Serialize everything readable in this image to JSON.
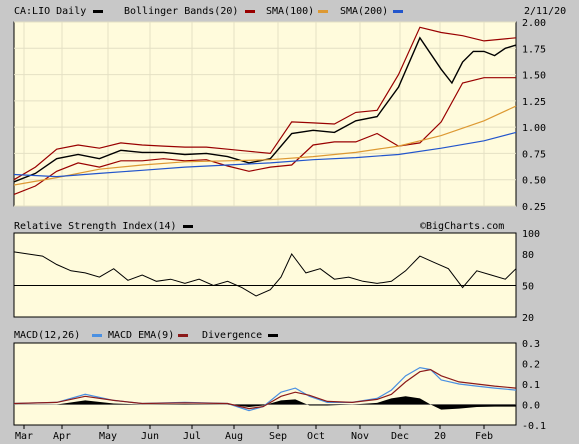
{
  "date": "2/11/20",
  "watermark": "©BigCharts.com",
  "colors": {
    "background": "#c8c8c8",
    "plot": "#fffbdc",
    "price": "#000000",
    "bollinger": "#990000",
    "sma100": "#dd9933",
    "sma200": "#2255cc",
    "rsi": "#000000",
    "macd": "#4a90e2",
    "macd_ema": "#8b1a1a",
    "divergence": "#000000"
  },
  "chart_data": [
    {
      "type": "line",
      "title": "CA:LIO Daily",
      "legend": [
        {
          "label": "CA:LIO Daily",
          "color": "#000000"
        },
        {
          "label": "Bollinger Bands(20)",
          "color": "#990000"
        },
        {
          "label": "SMA(100)",
          "color": "#dd9933"
        },
        {
          "label": "SMA(200)",
          "color": "#2255cc"
        }
      ],
      "x_ticks": [
        "Mar",
        "Apr",
        "May",
        "Jun",
        "Jul",
        "Aug",
        "Sep",
        "Oct",
        "Nov",
        "Dec",
        "20",
        "Feb"
      ],
      "y_ticks": [
        "2.00",
        "1.75",
        "1.50",
        "1.25",
        "1.00",
        "0.75",
        "0.50",
        "0.25"
      ],
      "ylim": [
        0.25,
        2.0
      ],
      "grid": true,
      "series": [
        {
          "name": "CA:LIO Daily",
          "x": [
            0,
            12,
            24,
            36,
            48,
            60,
            72,
            84,
            96,
            108,
            120,
            132,
            144,
            156,
            168,
            180,
            192,
            204,
            216,
            228,
            240,
            246,
            252,
            258,
            264,
            270,
            276,
            282
          ],
          "values": [
            0.48,
            0.56,
            0.7,
            0.74,
            0.7,
            0.78,
            0.76,
            0.76,
            0.74,
            0.75,
            0.72,
            0.66,
            0.7,
            0.94,
            0.97,
            0.95,
            1.06,
            1.1,
            1.38,
            1.85,
            1.55,
            1.42,
            1.62,
            1.72,
            1.72,
            1.68,
            1.75,
            1.78
          ]
        },
        {
          "name": "Bollinger Bands(20)",
          "x": [
            0,
            12,
            24,
            36,
            48,
            60,
            72,
            84,
            96,
            108,
            120,
            132,
            144,
            156,
            168,
            180,
            192,
            204,
            216,
            228,
            240,
            252,
            264,
            282
          ],
          "values": [
            0.5,
            0.62,
            0.79,
            0.83,
            0.8,
            0.85,
            0.83,
            0.82,
            0.81,
            0.81,
            0.79,
            0.77,
            0.75,
            1.05,
            1.04,
            1.03,
            1.14,
            1.16,
            1.5,
            1.95,
            1.9,
            1.87,
            1.82,
            1.85
          ]
        },
        {
          "name": "Bollinger Bands(20) lower",
          "x": [
            0,
            12,
            24,
            36,
            48,
            60,
            72,
            84,
            96,
            108,
            120,
            132,
            144,
            156,
            168,
            180,
            192,
            204,
            216,
            228,
            240,
            252,
            264,
            282
          ],
          "values": [
            0.36,
            0.44,
            0.58,
            0.66,
            0.62,
            0.68,
            0.68,
            0.7,
            0.68,
            0.69,
            0.63,
            0.58,
            0.62,
            0.64,
            0.83,
            0.86,
            0.86,
            0.94,
            0.82,
            0.85,
            1.05,
            1.42,
            1.47,
            1.47
          ]
        },
        {
          "name": "SMA(100)",
          "x": [
            0,
            24,
            48,
            72,
            96,
            120,
            144,
            168,
            192,
            216,
            240,
            264,
            282
          ],
          "values": [
            0.45,
            0.52,
            0.6,
            0.64,
            0.67,
            0.68,
            0.69,
            0.72,
            0.76,
            0.82,
            0.92,
            1.06,
            1.2
          ]
        },
        {
          "name": "SMA(200)",
          "x": [
            0,
            24,
            48,
            72,
            96,
            120,
            144,
            168,
            192,
            216,
            240,
            264,
            282
          ],
          "values": [
            0.55,
            0.53,
            0.56,
            0.59,
            0.62,
            0.64,
            0.66,
            0.69,
            0.71,
            0.74,
            0.8,
            0.87,
            0.95
          ]
        }
      ]
    },
    {
      "type": "line",
      "title": "Relative Strength Index(14)",
      "legend": [
        {
          "label": "Relative Strength Index(14)",
          "color": "#000000"
        }
      ],
      "y_ticks": [
        "100",
        "80",
        "50",
        "20"
      ],
      "ylim": [
        20,
        100
      ],
      "reference_line": 50,
      "series": [
        {
          "name": "Relative Strength Index(14)",
          "x": [
            0,
            8,
            16,
            24,
            32,
            40,
            48,
            56,
            64,
            72,
            80,
            88,
            96,
            104,
            112,
            120,
            128,
            136,
            144,
            150,
            156,
            164,
            172,
            180,
            188,
            196,
            204,
            212,
            220,
            228,
            236,
            244,
            252,
            260,
            268,
            276,
            282
          ],
          "values": [
            82,
            80,
            78,
            70,
            64,
            62,
            58,
            66,
            55,
            60,
            54,
            56,
            52,
            56,
            50,
            54,
            48,
            40,
            46,
            58,
            80,
            62,
            66,
            56,
            58,
            54,
            52,
            54,
            64,
            78,
            72,
            66,
            48,
            64,
            60,
            56,
            66
          ]
        }
      ]
    },
    {
      "type": "line",
      "title": "MACD(12,26)",
      "legend": [
        {
          "label": "MACD(12,26)",
          "color": "#000000"
        },
        {
          "label": "MACD EMA(9)",
          "color": "#4a90e2"
        },
        {
          "label": "Divergence",
          "color": "#8b1a1a"
        }
      ],
      "y_ticks": [
        "0.3",
        "0.2",
        "0.1",
        "0.0",
        "-0.1"
      ],
      "ylim": [
        -0.1,
        0.3
      ],
      "series": [
        {
          "name": "MACD(12,26)",
          "x": [
            0,
            24,
            40,
            56,
            72,
            96,
            120,
            132,
            140,
            150,
            158,
            166,
            176,
            190,
            204,
            212,
            220,
            228,
            234,
            240,
            250,
            260,
            270,
            282
          ],
          "values": [
            0.005,
            0.01,
            0.05,
            0.02,
            0.005,
            0.01,
            0.005,
            -0.03,
            -0.01,
            0.06,
            0.08,
            0.04,
            0.01,
            0.01,
            0.03,
            0.07,
            0.14,
            0.18,
            0.17,
            0.12,
            0.1,
            0.09,
            0.08,
            0.07
          ]
        },
        {
          "name": "MACD EMA(9)",
          "x": [
            0,
            24,
            40,
            56,
            72,
            96,
            120,
            132,
            140,
            150,
            158,
            166,
            176,
            190,
            204,
            212,
            220,
            228,
            234,
            240,
            250,
            260,
            270,
            282
          ],
          "values": [
            0.005,
            0.01,
            0.04,
            0.02,
            0.005,
            0.008,
            0.005,
            -0.02,
            -0.01,
            0.04,
            0.06,
            0.045,
            0.015,
            0.01,
            0.025,
            0.05,
            0.11,
            0.16,
            0.17,
            0.14,
            0.11,
            0.1,
            0.09,
            0.08
          ]
        },
        {
          "name": "Divergence",
          "x": [
            0,
            24,
            40,
            56,
            72,
            96,
            120,
            132,
            140,
            150,
            158,
            166,
            176,
            190,
            204,
            212,
            220,
            228,
            234,
            240,
            250,
            260,
            270,
            282
          ],
          "values": [
            0.0,
            0.0,
            0.02,
            0.005,
            0.0,
            0.002,
            0.0,
            -0.012,
            -0.005,
            0.02,
            0.025,
            -0.005,
            -0.005,
            0.0,
            0.008,
            0.03,
            0.04,
            0.03,
            0.0,
            -0.025,
            -0.02,
            -0.012,
            -0.01,
            -0.01
          ]
        }
      ]
    }
  ]
}
